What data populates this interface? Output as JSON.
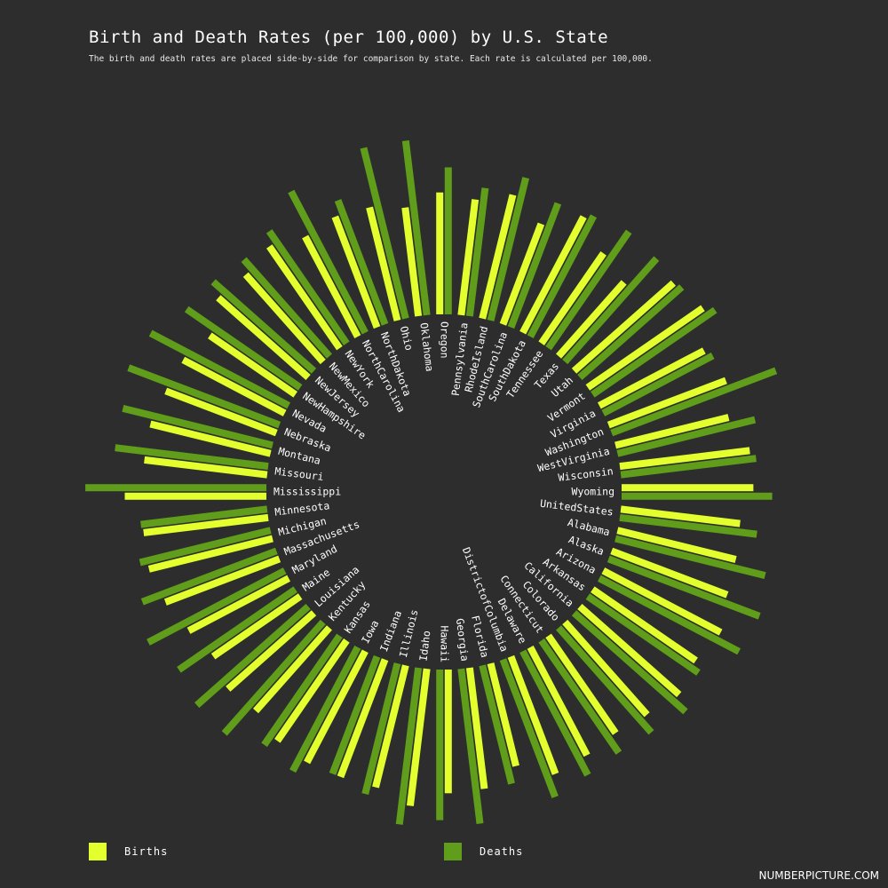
{
  "title": "Birth and Death Rates (per 100,000) by U.S. State",
  "subtitle": "The birth and death rates are placed side-by-side for comparison by state. Each rate is calculated per 100,000.",
  "legend": {
    "births_label": "Births",
    "deaths_label": "Deaths"
  },
  "credit": "NUMBERPICTURE.COM",
  "colors": {
    "background": "#2d2d2d",
    "births": "#e3ff2e",
    "deaths": "#5f9d1a",
    "text": "#ffffff"
  },
  "chart_data": {
    "type": "bar",
    "layout": "radial",
    "categories": [
      "Wyoming",
      "United States",
      "Alabama",
      "Alaska",
      "Arizona",
      "Arkansas",
      "California",
      "Colorado",
      "Connecticut",
      "Delaware",
      "District of Columbia",
      "Florida",
      "Georgia",
      "Hawaii",
      "Idaho",
      "Illinois",
      "Indiana",
      "Iowa",
      "Kansas",
      "Kentucky",
      "Louisiana",
      "Maine",
      "Maryland",
      "Massachusetts",
      "Michigan",
      "Minnesota",
      "Mississippi",
      "Missouri",
      "Montana",
      "Nebraska",
      "Nevada",
      "New Hampshire",
      "New Jersey",
      "New Mexico",
      "New York",
      "North Carolina",
      "North Dakota",
      "Ohio",
      "Oklahoma",
      "Oregon",
      "Pennsylvania",
      "Rhode Island",
      "South Carolina",
      "South Dakota",
      "Tennessee",
      "Texas",
      "Utah",
      "Vermont",
      "Virginia",
      "Washington",
      "West Virginia",
      "Wisconsin"
    ],
    "series": [
      {
        "name": "Births",
        "values": [
          147,
          134,
          136,
          138,
          148,
          140,
          148,
          138,
          132,
          136,
          140,
          118,
          136,
          138,
          154,
          140,
          140,
          140,
          136,
          124,
          128,
          118,
          126,
          136,
          142,
          140,
          158,
          138,
          138,
          132,
          128,
          116,
          134,
          130,
          138,
          126,
          132,
          130,
          122,
          136,
          130,
          142,
          120,
          146,
          122,
          110,
          148,
          156,
          132,
          140,
          130,
          146
        ]
      },
      {
        "name": "Deaths",
        "values": [
          168,
          154,
          172,
          180,
          176,
          150,
          166,
          156,
          152,
          156,
          164,
          136,
          174,
          168,
          176,
          150,
          140,
          156,
          148,
          166,
          166,
          158,
          172,
          160,
          150,
          142,
          202,
          172,
          172,
          180,
          174,
          154,
          150,
          144,
          152,
          178,
          148,
          196,
          196,
          164,
          144,
          164,
          148,
          152,
          158,
          154,
          152,
          166,
          138,
          196,
          158,
          152
        ]
      }
    ]
  }
}
